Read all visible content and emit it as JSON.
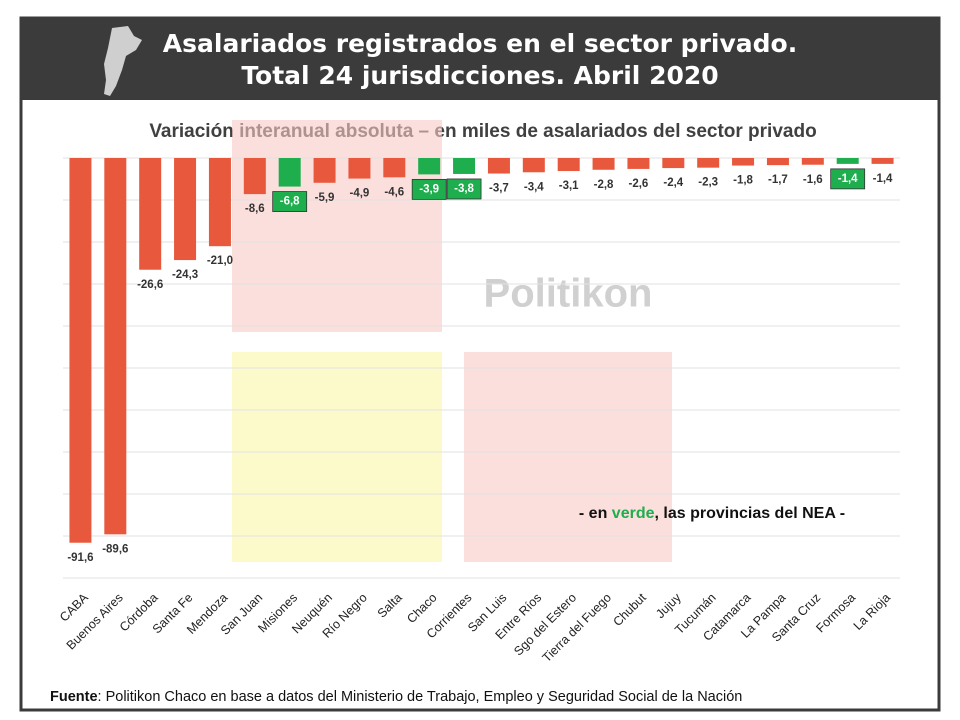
{
  "chart_data": {
    "type": "bar",
    "title": "Asalariados registrados en el sector privado.",
    "title_line2": "Total 24 jurisdicciones. Abril 2020",
    "subtitle": "Variación  interanual absoluta – en miles de asalariados  del sector privado",
    "watermark": "Politikon",
    "annotation": [
      "- en ",
      "verde",
      ", las provincias del NEA -"
    ],
    "source_label": "Fuente",
    "source_text": ": Politikon Chaco en base a datos del Ministerio de Trabajo, Empleo y Seguridad Social de la Nación",
    "categories": [
      "CABA",
      "Buenos Aires",
      "Córdoba",
      "Santa Fe",
      "Mendoza",
      "San Juan",
      "Misiones",
      "Neuquén",
      "Río Negro",
      "Salta",
      "Chaco",
      "Corrientes",
      "San Luis",
      "Entre Ríos",
      "Sgo del Estero",
      "Tierra del Fuego",
      "Chubut",
      "Jujuy",
      "Tucumán",
      "Catamarca",
      "La Pampa",
      "Santa Cruz",
      "Formosa",
      "La Rioja"
    ],
    "values": [
      -91.6,
      -89.6,
      -26.6,
      -24.3,
      -21.0,
      -8.6,
      -6.8,
      -5.9,
      -4.9,
      -4.6,
      -3.9,
      -3.8,
      -3.7,
      -3.4,
      -3.1,
      -2.8,
      -2.6,
      -2.4,
      -2.3,
      -1.8,
      -1.7,
      -1.6,
      -1.4,
      -1.4
    ],
    "value_labels": [
      "-91,6",
      "-89,6",
      "-26,6",
      "-24,3",
      "-21,0",
      "-8,6",
      "-6,8",
      "-5,9",
      "-4,9",
      "-4,6",
      "-3,9",
      "-3,8",
      "-3,7",
      "-3,4",
      "-3,1",
      "-2,8",
      "-2,6",
      "-2,4",
      "-2,3",
      "-1,8",
      "-1,7",
      "-1,6",
      "-1,4",
      "-1,4"
    ],
    "colors": [
      "#e8583c",
      "#e8583c",
      "#e8583c",
      "#e8583c",
      "#e8583c",
      "#e8583c",
      "#1eae4e",
      "#e8583c",
      "#e8583c",
      "#e8583c",
      "#1eae4e",
      "#1eae4e",
      "#e8583c",
      "#e8583c",
      "#e8583c",
      "#e8583c",
      "#e8583c",
      "#e8583c",
      "#e8583c",
      "#e8583c",
      "#e8583c",
      "#e8583c",
      "#1eae4e",
      "#e8583c"
    ],
    "ylim": [
      -100,
      0
    ],
    "yticks": [
      0,
      -10,
      -20,
      -30,
      -40,
      -50,
      -60,
      -70,
      -80,
      -90,
      -100
    ],
    "show_tick_labels": false,
    "grid": true
  }
}
